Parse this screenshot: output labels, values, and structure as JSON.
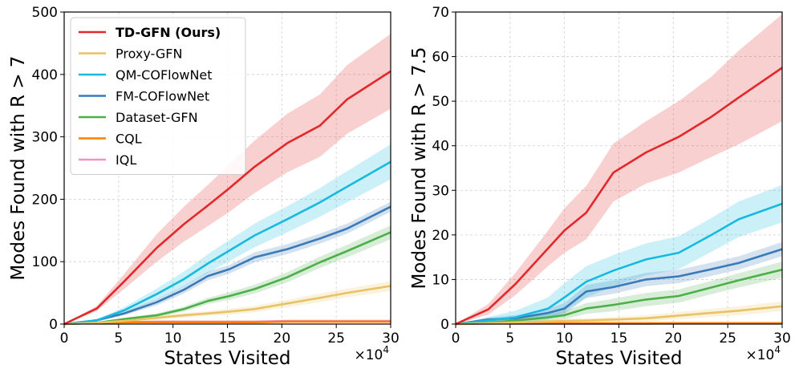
{
  "colors": {
    "td_gfn": "#e3282b",
    "proxy_gfn": "#e8c366",
    "qm_coflownet": "#18b9e0",
    "fm_coflownet": "#3a7ab8",
    "dataset_gfn": "#4daf4a",
    "cql": "#ff8000",
    "iql": "#f58fc6"
  },
  "chart_data": [
    {
      "type": "line",
      "xlabel": "States Visited",
      "ylabel": "Modes Found with R > 7",
      "x_multiplier_label": "×10",
      "x_multiplier_exp": "4",
      "xlim": [
        0,
        30
      ],
      "ylim": [
        0,
        500
      ],
      "xticks": [
        "0",
        "5",
        "10",
        "15",
        "20",
        "25",
        "30"
      ],
      "yticks": [
        "0",
        "100",
        "200",
        "300",
        "400",
        "500"
      ],
      "grid": true,
      "legend_position": "top-left",
      "x": [
        0,
        3,
        5.5,
        8.5,
        11,
        13.2,
        15.2,
        17.5,
        20.5,
        23.5,
        26,
        30
      ],
      "series": [
        {
          "name": "TD-GFN (Ours)",
          "color_key": "td_gfn",
          "bold": true,
          "values": [
            0,
            25,
            68,
            122,
            160,
            190,
            218,
            252,
            290,
            318,
            360,
            405
          ],
          "band": [
            0,
            4,
            12,
            22,
            28,
            33,
            38,
            42,
            47,
            50,
            55,
            60
          ]
        },
        {
          "name": "Proxy-GFN",
          "color_key": "proxy_gfn",
          "values": [
            0,
            2,
            5,
            10,
            14,
            17,
            20,
            24,
            33,
            42,
            50,
            61
          ],
          "band": [
            0,
            1,
            2,
            3,
            4,
            4,
            5,
            5,
            6,
            7,
            7,
            8
          ]
        },
        {
          "name": "QM-COFlowNet",
          "color_key": "qm_coflownet",
          "values": [
            0,
            6,
            22,
            48,
            72,
            97,
            118,
            142,
            168,
            195,
            220,
            260
          ],
          "band": [
            0,
            2,
            5,
            9,
            12,
            15,
            17,
            19,
            21,
            23,
            25,
            28
          ]
        },
        {
          "name": "FM-COFlowNet",
          "color_key": "fm_coflownet",
          "values": [
            0,
            6,
            17,
            35,
            55,
            77,
            88,
            107,
            120,
            137,
            153,
            188
          ],
          "band": [
            0,
            2,
            3,
            5,
            6,
            7,
            7,
            8,
            8,
            8,
            8,
            8
          ]
        },
        {
          "name": "Dataset-GFN",
          "color_key": "dataset_gfn",
          "values": [
            0,
            2,
            8,
            14,
            24,
            37,
            45,
            56,
            75,
            99,
            117,
            147
          ],
          "band": [
            0,
            1,
            2,
            3,
            4,
            5,
            6,
            7,
            8,
            9,
            10,
            11
          ]
        },
        {
          "name": "CQL",
          "color_key": "cql",
          "values": [
            0,
            2,
            3,
            3,
            3,
            3,
            3,
            3,
            4,
            4,
            4,
            4
          ],
          "band": [
            0,
            0.5,
            0.5,
            0.5,
            0.5,
            0.5,
            0.5,
            0.5,
            0.5,
            0.5,
            0.5,
            0.5
          ]
        },
        {
          "name": "IQL",
          "color_key": "iql",
          "values": [
            0,
            2,
            3,
            4,
            4,
            4,
            4,
            4,
            5,
            5,
            5,
            5
          ],
          "band": [
            0,
            0.5,
            0.5,
            0.5,
            0.5,
            0.5,
            0.5,
            0.5,
            0.5,
            0.5,
            0.5,
            0.5
          ]
        }
      ]
    },
    {
      "type": "line",
      "xlabel": "States Visited",
      "ylabel": "Modes Found with R > 7.5",
      "x_multiplier_label": "×10",
      "x_multiplier_exp": "4",
      "xlim": [
        0,
        30
      ],
      "ylim": [
        0,
        70
      ],
      "xticks": [
        "0",
        "5",
        "10",
        "15",
        "20",
        "25",
        "30"
      ],
      "yticks": [
        "0",
        "10",
        "20",
        "30",
        "40",
        "50",
        "60",
        "70"
      ],
      "grid": true,
      "legend_position": "none",
      "x": [
        0,
        3,
        5.5,
        8.5,
        10,
        12,
        14.5,
        17.5,
        20.5,
        23.5,
        26,
        30
      ],
      "series": [
        {
          "name": "TD-GFN (Ours)",
          "color_key": "td_gfn",
          "values": [
            0,
            3.3,
            9,
            17,
            21,
            25,
            34,
            38.5,
            42,
            46.5,
            50.8,
            57.5
          ],
          "band": [
            0,
            1.2,
            2.5,
            4,
            5,
            6,
            6.5,
            7,
            8,
            9,
            10.5,
            12
          ]
        },
        {
          "name": "Proxy-GFN",
          "color_key": "proxy_gfn",
          "values": [
            0,
            0.2,
            0.4,
            0.6,
            0.7,
            0.8,
            1.0,
            1.3,
            1.9,
            2.5,
            3.0,
            4.0
          ],
          "band": [
            0,
            0.2,
            0.3,
            0.4,
            0.5,
            0.5,
            0.6,
            0.7,
            0.8,
            0.9,
            1.0,
            1.1
          ]
        },
        {
          "name": "QM-COFlowNet",
          "color_key": "qm_coflownet",
          "values": [
            0,
            0.8,
            1.5,
            3.5,
            6,
            9.5,
            12,
            14.5,
            16,
            20,
            23.5,
            27
          ],
          "band": [
            0,
            0.8,
            1.5,
            2.5,
            3.2,
            3.5,
            3.5,
            3.6,
            3.7,
            3.8,
            4,
            4.2
          ]
        },
        {
          "name": "FM-COFlowNet",
          "color_key": "fm_coflownet",
          "values": [
            0,
            1,
            1.3,
            2.5,
            3.5,
            7.3,
            8.3,
            10,
            10.7,
            12.3,
            13.7,
            16.8
          ],
          "band": [
            0,
            0.5,
            0.7,
            1,
            1.2,
            1.5,
            1.5,
            1.5,
            1.5,
            1.5,
            1.5,
            1.6
          ]
        },
        {
          "name": "Dataset-GFN",
          "color_key": "dataset_gfn",
          "values": [
            0,
            0.3,
            0.8,
            1.5,
            2.0,
            3.5,
            4.3,
            5.5,
            6.3,
            8.2,
            9.8,
            12.2
          ],
          "band": [
            0,
            0.3,
            0.5,
            0.7,
            0.9,
            1.2,
            1.4,
            1.5,
            1.5,
            1.5,
            1.6,
            1.8
          ]
        },
        {
          "name": "CQL",
          "color_key": "cql",
          "values": [
            0,
            0.2,
            0.2,
            0.2,
            0.2,
            0.2,
            0.2,
            0.2,
            0.2,
            0.2,
            0.2,
            0.2
          ],
          "band": [
            0,
            0.1,
            0.1,
            0.1,
            0.1,
            0.1,
            0.1,
            0.1,
            0.1,
            0.1,
            0.1,
            0.1
          ]
        },
        {
          "name": "IQL",
          "color_key": "iql",
          "values": [
            0,
            0.1,
            0.1,
            0.1,
            0.1,
            0.1,
            0.1,
            0.1,
            0.2,
            0.2,
            0.2,
            0.2
          ],
          "band": [
            0,
            0.1,
            0.1,
            0.1,
            0.1,
            0.1,
            0.1,
            0.1,
            0.1,
            0.1,
            0.1,
            0.1
          ]
        }
      ]
    }
  ]
}
